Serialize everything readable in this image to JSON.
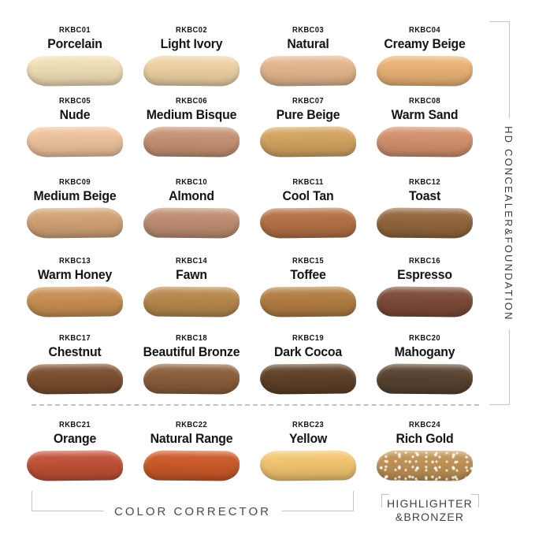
{
  "side_label": "HD CONCEALER&FOUNDATION",
  "groups": {
    "color_corrector_label": "COLOR CORRECTOR",
    "highlighter_line1": "HIGHLIGHTER",
    "highlighter_line2": "&BRONZER"
  },
  "palette": {
    "bracket_line": "#c3c3c3",
    "group_label_text": "#4b4b4b",
    "shade_label_text": "#141414",
    "background": "#ffffff"
  },
  "swatches": [
    {
      "code": "RKBC01",
      "name": "Porcelain",
      "color": "#f0ddb4"
    },
    {
      "code": "RKBC02",
      "name": "Light Ivory",
      "color": "#ecd1a2"
    },
    {
      "code": "RKBC03",
      "name": "Natural",
      "color": "#e3b58d"
    },
    {
      "code": "RKBC04",
      "name": "Creamy Beige",
      "color": "#e9b274"
    },
    {
      "code": "RKBC05",
      "name": "Nude",
      "color": "#edc29c"
    },
    {
      "code": "RKBC06",
      "name": "Medium Bisque",
      "color": "#c49174"
    },
    {
      "code": "RKBC07",
      "name": "Pure Beige",
      "color": "#d2a35f"
    },
    {
      "code": "RKBC08",
      "name": "Warm Sand",
      "color": "#d1906c"
    },
    {
      "code": "RKBC09",
      "name": "Medium Beige",
      "color": "#d1a274"
    },
    {
      "code": "RKBC10",
      "name": "Almond",
      "color": "#be8d71"
    },
    {
      "code": "RKBC11",
      "name": "Cool Tan",
      "color": "#b37045"
    },
    {
      "code": "RKBC12",
      "name": "Toast",
      "color": "#91653c"
    },
    {
      "code": "RKBC13",
      "name": "Warm Honey",
      "color": "#c88e52"
    },
    {
      "code": "RKBC14",
      "name": "Fawn",
      "color": "#b6874c"
    },
    {
      "code": "RKBC15",
      "name": "Toffee",
      "color": "#b17c41"
    },
    {
      "code": "RKBC16",
      "name": "Espresso",
      "color": "#7c4937"
    },
    {
      "code": "RKBC17",
      "name": "Chestnut",
      "color": "#7b4d2e"
    },
    {
      "code": "RKBC18",
      "name": "Beautiful Bronze",
      "color": "#8a5e3a"
    },
    {
      "code": "RKBC19",
      "name": "Dark Cocoa",
      "color": "#5d4026"
    },
    {
      "code": "RKBC20",
      "name": "Mahogany",
      "color": "#57422f"
    },
    {
      "code": "RKBC21",
      "name": "Orange",
      "color": "#c04f36"
    },
    {
      "code": "RKBC22",
      "name": "Natural Range",
      "color": "#cb5827"
    },
    {
      "code": "RKBC23",
      "name": "Yellow",
      "color": "#f2c46f"
    },
    {
      "code": "RKBC24",
      "name": "Rich Gold",
      "color": "#be9156",
      "sparkle": true
    }
  ]
}
